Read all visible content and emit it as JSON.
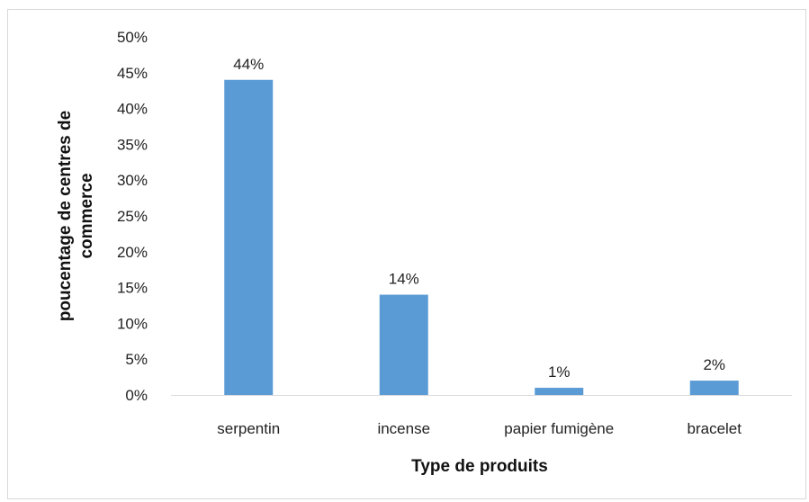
{
  "chart_data": {
    "type": "bar",
    "categories": [
      "serpentin",
      "incense",
      "papier fumigène",
      "bracelet"
    ],
    "values": [
      44,
      14,
      1,
      2
    ],
    "data_labels": [
      "44%",
      "14%",
      "1%",
      "2%"
    ],
    "xlabel": "Type de produits",
    "ylabel_lines": [
      "poucentage de centres de",
      "commerce"
    ],
    "ylim": [
      0,
      50
    ],
    "yticks": [
      "0%",
      "5%",
      "10%",
      "15%",
      "20%",
      "25%",
      "30%",
      "35%",
      "40%",
      "45%",
      "50%"
    ],
    "grid": false,
    "bar_color": "#5b9bd5",
    "axis_color": "#d9d9d9"
  }
}
